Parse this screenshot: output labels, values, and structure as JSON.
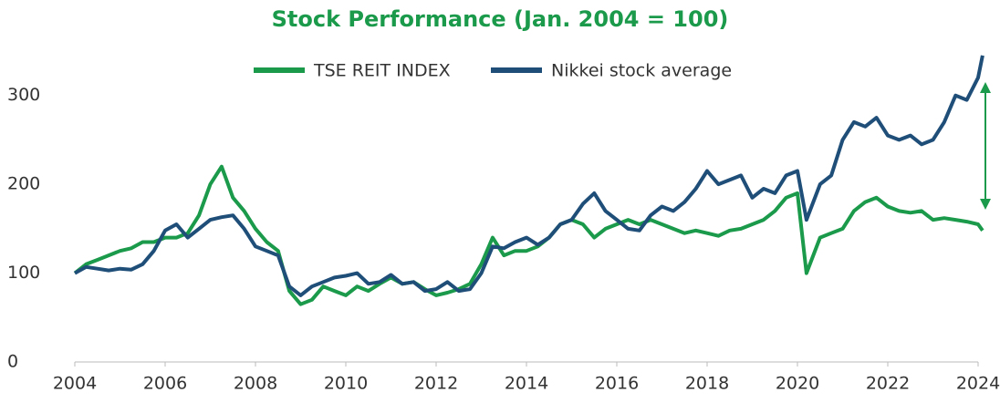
{
  "chart_data": {
    "type": "line",
    "title": "Stock Performance (Jan. 2004 = 100)",
    "x": [
      2004.0,
      2004.25,
      2004.5,
      2004.75,
      2005.0,
      2005.25,
      2005.5,
      2005.75,
      2006.0,
      2006.25,
      2006.5,
      2006.75,
      2007.0,
      2007.25,
      2007.5,
      2007.75,
      2008.0,
      2008.25,
      2008.5,
      2008.75,
      2009.0,
      2009.25,
      2009.5,
      2009.75,
      2010.0,
      2010.25,
      2010.5,
      2010.75,
      2011.0,
      2011.25,
      2011.5,
      2011.75,
      2012.0,
      2012.25,
      2012.5,
      2012.75,
      2013.0,
      2013.25,
      2013.5,
      2013.75,
      2014.0,
      2014.25,
      2014.5,
      2014.75,
      2015.0,
      2015.25,
      2015.5,
      2015.75,
      2016.0,
      2016.25,
      2016.5,
      2016.75,
      2017.0,
      2017.25,
      2017.5,
      2017.75,
      2018.0,
      2018.25,
      2018.5,
      2018.75,
      2019.0,
      2019.25,
      2019.5,
      2019.75,
      2020.0,
      2020.2,
      2020.5,
      2020.75,
      2021.0,
      2021.25,
      2021.5,
      2021.75,
      2022.0,
      2022.25,
      2022.5,
      2022.75,
      2023.0,
      2023.25,
      2023.5,
      2023.75,
      2024.0,
      2024.1
    ],
    "series": [
      {
        "name": "TSE REIT INDEX",
        "color": "#1a9a4a",
        "values": [
          100,
          110,
          115,
          120,
          125,
          128,
          135,
          135,
          140,
          140,
          145,
          165,
          200,
          220,
          185,
          170,
          150,
          135,
          125,
          80,
          65,
          70,
          85,
          80,
          75,
          85,
          80,
          88,
          95,
          88,
          90,
          82,
          75,
          78,
          82,
          88,
          110,
          140,
          120,
          125,
          125,
          130,
          140,
          155,
          160,
          155,
          140,
          150,
          155,
          160,
          155,
          160,
          155,
          150,
          145,
          148,
          145,
          142,
          148,
          150,
          155,
          160,
          170,
          185,
          190,
          100,
          140,
          145,
          150,
          170,
          180,
          185,
          175,
          170,
          168,
          170,
          160,
          162,
          160,
          158,
          155,
          148
        ]
      },
      {
        "name": "Nikkei stock average",
        "color": "#1f4e79",
        "values": [
          100,
          107,
          105,
          103,
          105,
          104,
          110,
          125,
          148,
          155,
          140,
          150,
          160,
          163,
          165,
          150,
          130,
          125,
          120,
          85,
          75,
          85,
          90,
          95,
          97,
          100,
          88,
          90,
          98,
          88,
          90,
          80,
          82,
          90,
          80,
          82,
          100,
          130,
          128,
          135,
          140,
          132,
          140,
          155,
          160,
          178,
          190,
          170,
          160,
          150,
          148,
          165,
          175,
          170,
          180,
          195,
          215,
          200,
          205,
          210,
          185,
          195,
          190,
          210,
          215,
          160,
          200,
          210,
          250,
          270,
          265,
          275,
          255,
          250,
          255,
          245,
          250,
          270,
          300,
          295,
          320,
          345
        ]
      }
    ],
    "xlim": [
      2004,
      2024
    ],
    "xticks": [
      2004,
      2006,
      2008,
      2010,
      2012,
      2014,
      2016,
      2018,
      2020,
      2022,
      2024
    ],
    "ylim": [
      0,
      350
    ],
    "yticks": [
      0,
      100,
      200,
      300
    ]
  }
}
